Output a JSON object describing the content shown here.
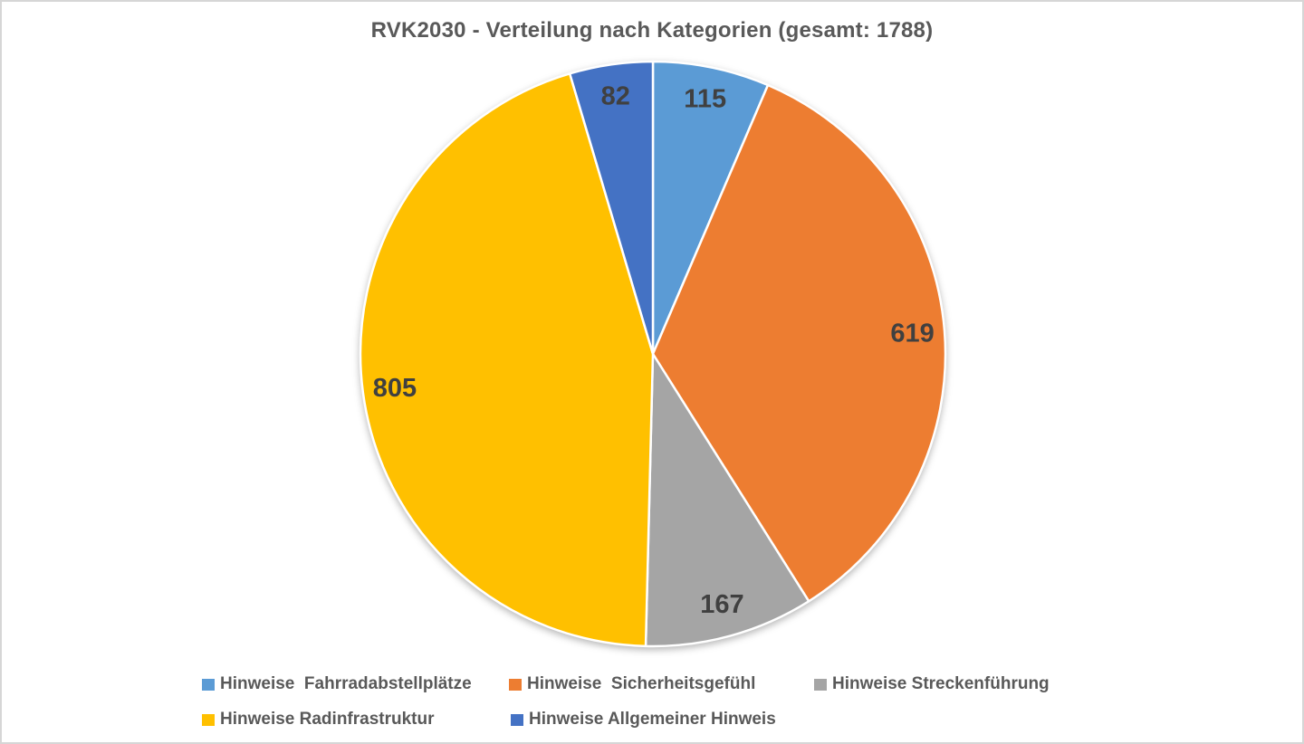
{
  "frame": {
    "background": "#ffffff",
    "border_color": "#d6d6d6"
  },
  "chart_data": {
    "type": "pie",
    "title": "RVK2030 - Verteilung nach Kategorien (gesamt: 1788)",
    "total": 1788,
    "direction": "clockwise",
    "start_angle_deg": 0,
    "legend_position": "bottom",
    "title_color": "#595959",
    "legend_text_color": "#595959",
    "data_label_color": "#404040",
    "slice_separator_color": "#ffffff",
    "slices": [
      {
        "label": "Hinweise  Fahrradabstellplätze",
        "value": 115,
        "color": "#5B9BD5"
      },
      {
        "label": "Hinweise  Sicherheitsgefühl",
        "value": 619,
        "color": "#ED7D31"
      },
      {
        "label": "Hinweise Streckenführung",
        "value": 167,
        "color": "#A5A5A5"
      },
      {
        "label": "Hinweise Radinfrastruktur",
        "value": 805,
        "color": "#FFC000"
      },
      {
        "label": "Hinweise Allgemeiner Hinweis",
        "value": 82,
        "color": "#4472C4"
      }
    ]
  }
}
